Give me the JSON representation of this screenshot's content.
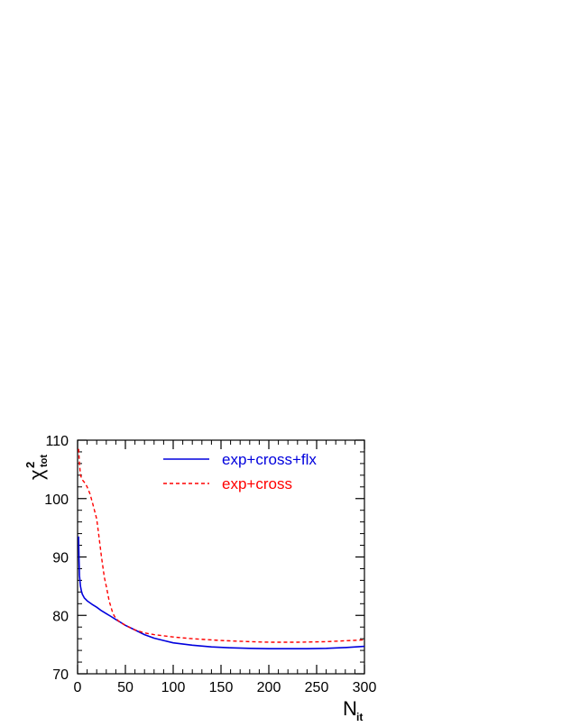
{
  "chart_data": {
    "type": "line",
    "title": "",
    "xlabel": {
      "main": "N",
      "sub": "it"
    },
    "ylabel": {
      "main": "χ",
      "sup": "2",
      "sub": "tot"
    },
    "xlim": [
      0,
      300
    ],
    "ylim": [
      70,
      110
    ],
    "xticks": [
      0,
      50,
      100,
      150,
      200,
      250,
      300
    ],
    "yticks": [
      70,
      80,
      90,
      100,
      110
    ],
    "grid": false,
    "legend_position": "top-right",
    "series": [
      {
        "name": "exp+cross+flx",
        "color": "#0000dd",
        "dash": "solid",
        "x": [
          1,
          1.5,
          2,
          3,
          4,
          5,
          7,
          10,
          15,
          20,
          25,
          30,
          35,
          40,
          45,
          50,
          60,
          70,
          80,
          90,
          100,
          120,
          140,
          160,
          180,
          200,
          220,
          240,
          260,
          280,
          300
        ],
        "y": [
          93.5,
          89.5,
          86.8,
          85.0,
          84.2,
          83.6,
          83.0,
          82.5,
          81.9,
          81.4,
          80.8,
          80.3,
          79.8,
          79.3,
          78.8,
          78.3,
          77.5,
          76.7,
          76.1,
          75.7,
          75.3,
          74.9,
          74.6,
          74.45,
          74.35,
          74.3,
          74.3,
          74.3,
          74.35,
          74.5,
          74.7
        ]
      },
      {
        "name": "exp+cross",
        "color": "#ff0000",
        "dash": "dashed",
        "x": [
          1,
          2,
          3,
          5,
          8,
          10,
          13,
          16,
          20,
          22,
          25,
          28,
          30,
          33,
          36,
          38,
          40,
          43,
          46,
          50,
          60,
          70,
          80,
          100,
          120,
          150,
          180,
          200,
          230,
          260,
          300
        ],
        "y": [
          108.5,
          106.0,
          104.0,
          103.2,
          102.6,
          102.0,
          100.8,
          99.0,
          96.5,
          94.0,
          90.0,
          86.5,
          85.0,
          82.5,
          80.8,
          80.0,
          79.5,
          79.0,
          78.7,
          78.3,
          77.5,
          77.0,
          76.7,
          76.3,
          76.0,
          75.7,
          75.5,
          75.4,
          75.4,
          75.5,
          75.8
        ]
      }
    ]
  }
}
